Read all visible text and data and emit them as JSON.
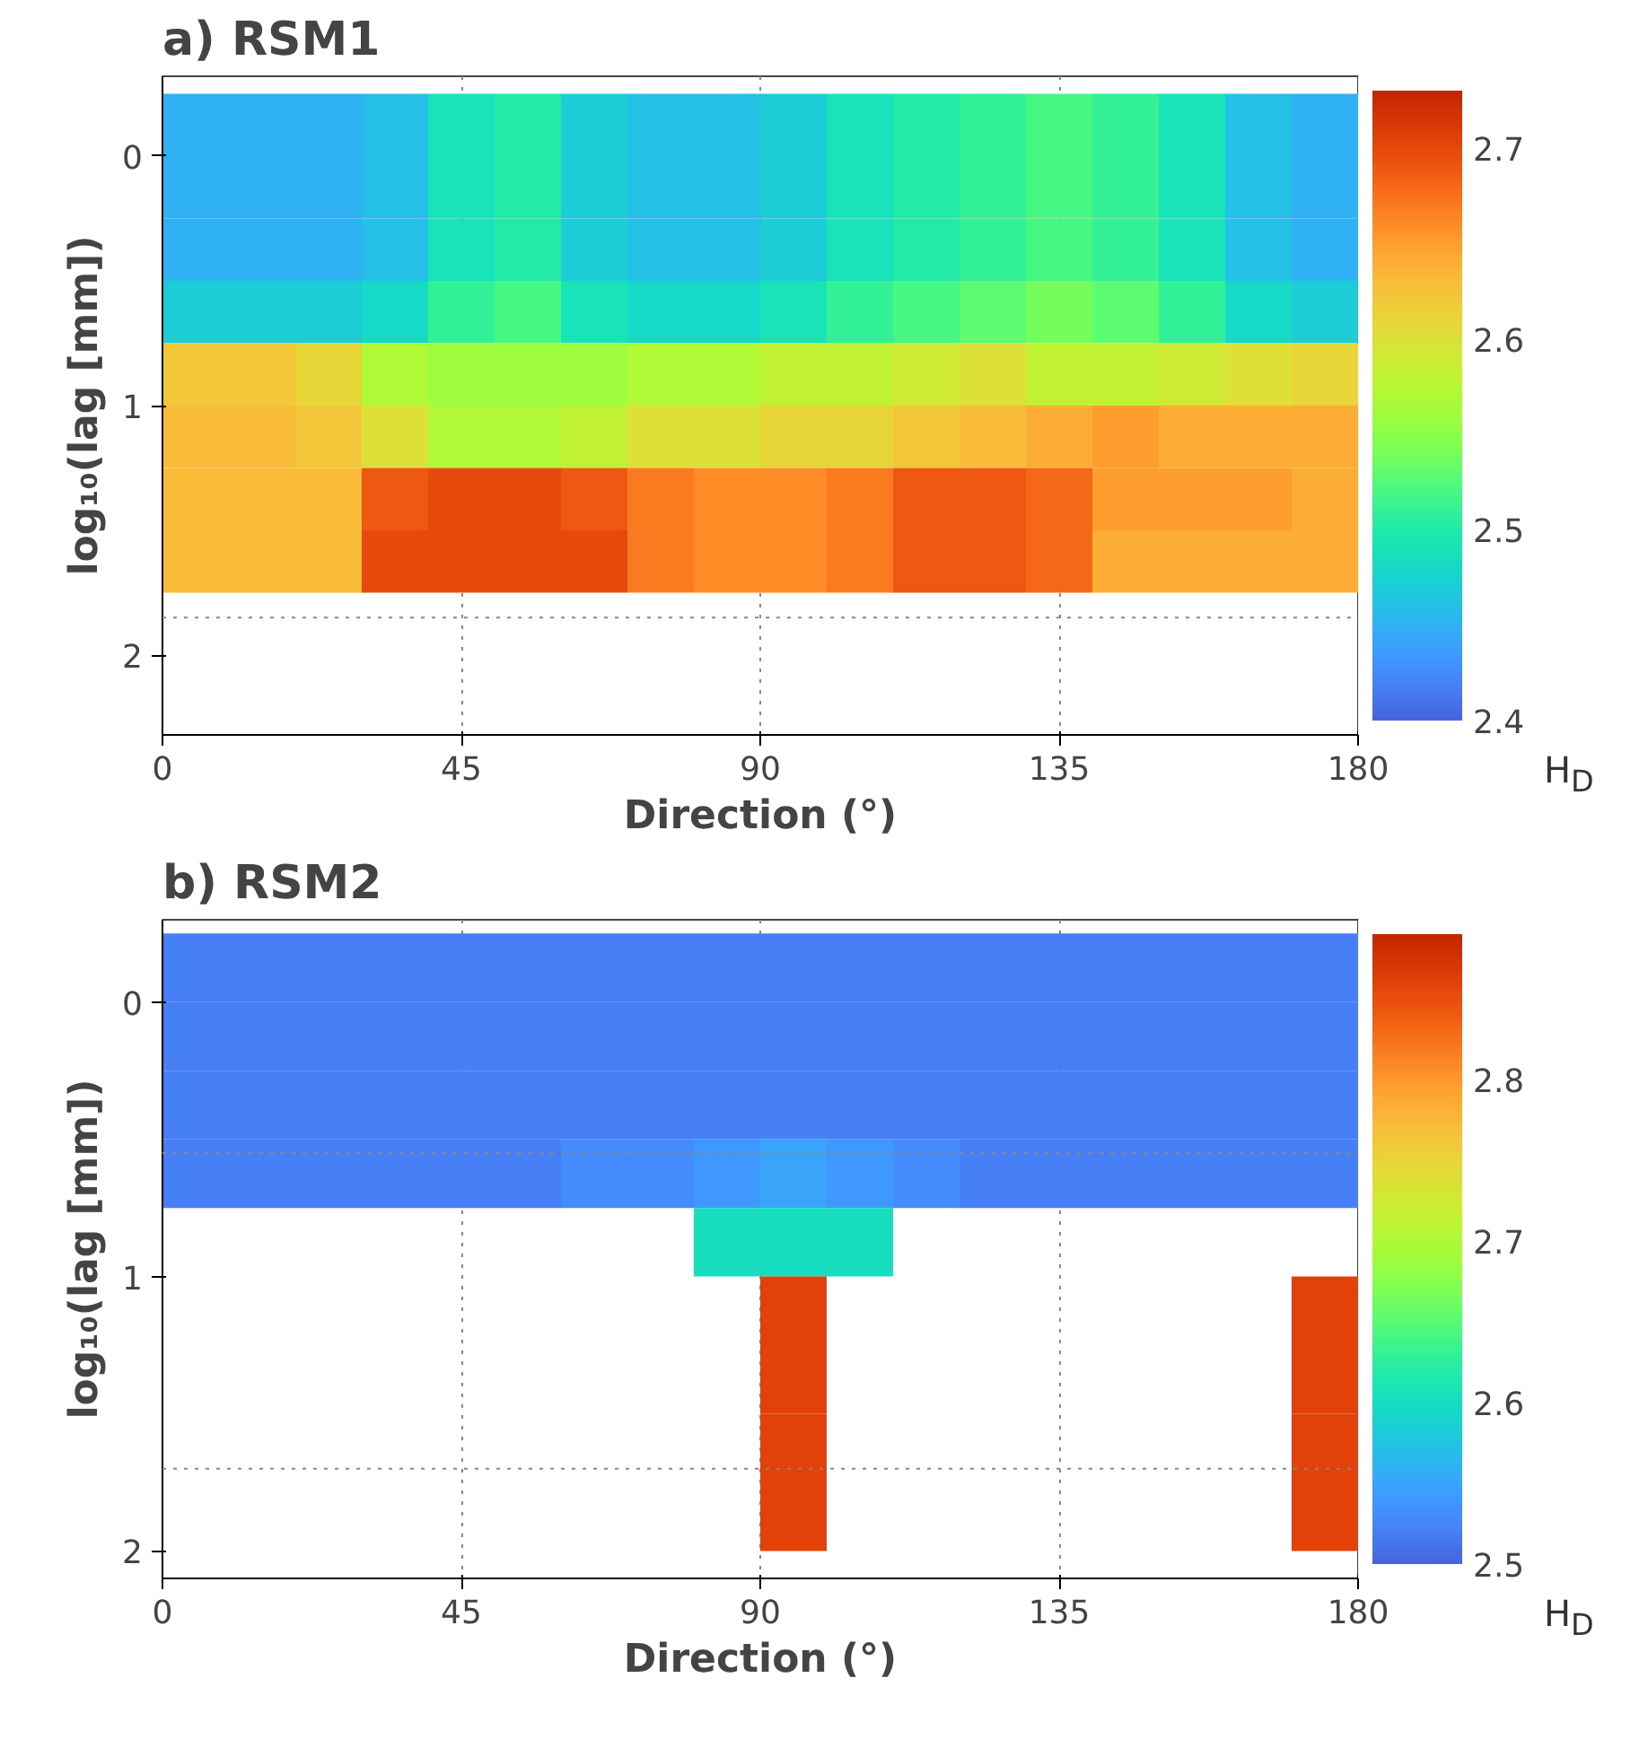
{
  "chart_data": [
    {
      "type": "heatmap",
      "title": "a) RSM1",
      "xlabel": "Direction (°)",
      "ylabel": "log₁₀(lag [mm])",
      "clabel": "H$_{D}$",
      "x": [
        5,
        15,
        25,
        35,
        45,
        55,
        65,
        75,
        85,
        95,
        105,
        115,
        125,
        135,
        145,
        155,
        165,
        175
      ],
      "y": [
        -0.125,
        0.125,
        0.375,
        0.625,
        0.875,
        1.125,
        1.375,
        1.625
      ],
      "cells": [
        [
          2.45,
          2.45,
          2.45,
          2.46,
          2.49,
          2.5,
          2.47,
          2.46,
          2.46,
          2.47,
          2.49,
          2.5,
          2.51,
          2.52,
          2.51,
          2.49,
          2.46,
          2.45
        ],
        [
          2.45,
          2.45,
          2.45,
          2.46,
          2.49,
          2.5,
          2.47,
          2.46,
          2.46,
          2.47,
          2.49,
          2.5,
          2.51,
          2.52,
          2.51,
          2.49,
          2.46,
          2.45
        ],
        [
          2.45,
          2.45,
          2.45,
          2.46,
          2.49,
          2.5,
          2.47,
          2.46,
          2.46,
          2.47,
          2.49,
          2.5,
          2.51,
          2.52,
          2.51,
          2.49,
          2.46,
          2.45
        ],
        [
          2.47,
          2.47,
          2.47,
          2.48,
          2.51,
          2.52,
          2.49,
          2.48,
          2.48,
          2.49,
          2.51,
          2.52,
          2.53,
          2.54,
          2.53,
          2.51,
          2.48,
          2.47
        ],
        [
          2.62,
          2.62,
          2.61,
          2.57,
          2.56,
          2.56,
          2.56,
          2.57,
          2.57,
          2.58,
          2.58,
          2.59,
          2.6,
          2.58,
          2.58,
          2.59,
          2.6,
          2.61
        ],
        [
          2.63,
          2.63,
          2.62,
          2.6,
          2.57,
          2.57,
          2.58,
          2.6,
          2.6,
          2.61,
          2.61,
          2.62,
          2.63,
          2.64,
          2.65,
          2.64,
          2.64,
          2.64
        ],
        [
          2.63,
          2.63,
          2.63,
          2.69,
          2.7,
          2.7,
          2.69,
          2.67,
          2.66,
          2.66,
          2.67,
          2.69,
          2.69,
          2.68,
          2.65,
          2.65,
          2.65,
          2.64
        ],
        [
          2.63,
          2.63,
          2.63,
          2.7,
          2.7,
          2.7,
          2.7,
          2.67,
          2.66,
          2.66,
          2.67,
          2.69,
          2.69,
          2.68,
          2.64,
          2.64,
          2.64,
          2.64
        ]
      ],
      "clim": [
        2.4,
        2.73
      ],
      "cticks": [
        2.4,
        2.5,
        2.6,
        2.7
      ],
      "xlim": [
        0,
        180
      ],
      "xticks": [
        0,
        45,
        90,
        135,
        180
      ],
      "ylim": [
        2.32,
        -0.32
      ],
      "yticks": [
        0,
        1,
        2
      ],
      "grid": "x",
      "ref_lines": [
        {
          "axis": "y",
          "value": 1.85,
          "line_style": "dotted"
        }
      ]
    },
    {
      "type": "heatmap",
      "title": "b) RSM2",
      "xlabel": "Direction (°)",
      "ylabel": "log₁₀(lag [mm])",
      "clabel": "H$_{D}$",
      "x": [
        5,
        15,
        25,
        35,
        45,
        55,
        65,
        75,
        85,
        95,
        105,
        115,
        125,
        135,
        145,
        155,
        165,
        175
      ],
      "y": [
        -0.125,
        0.125,
        0.375,
        0.625,
        0.875,
        1.125,
        1.375,
        1.625,
        1.875
      ],
      "cells": [
        [
          2.52,
          2.52,
          2.52,
          2.52,
          2.52,
          2.52,
          2.52,
          2.52,
          2.52,
          2.52,
          2.52,
          2.52,
          2.52,
          2.52,
          2.52,
          2.52,
          2.52,
          2.52
        ],
        [
          2.52,
          2.52,
          2.52,
          2.52,
          2.52,
          2.52,
          2.52,
          2.52,
          2.52,
          2.52,
          2.52,
          2.52,
          2.52,
          2.52,
          2.52,
          2.52,
          2.52,
          2.52
        ],
        [
          2.52,
          2.52,
          2.52,
          2.52,
          2.52,
          2.52,
          2.52,
          2.52,
          2.52,
          2.52,
          2.52,
          2.52,
          2.52,
          2.52,
          2.52,
          2.52,
          2.52,
          2.52
        ],
        [
          2.52,
          2.52,
          2.52,
          2.52,
          2.52,
          2.52,
          2.53,
          2.53,
          2.54,
          2.55,
          2.54,
          2.53,
          2.52,
          2.52,
          2.52,
          2.52,
          2.52,
          2.52
        ],
        [
          null,
          null,
          null,
          null,
          null,
          null,
          null,
          null,
          2.6,
          2.6,
          2.6,
          null,
          null,
          null,
          null,
          null,
          null,
          null
        ],
        [
          null,
          null,
          null,
          null,
          null,
          null,
          null,
          null,
          null,
          2.86,
          null,
          null,
          null,
          null,
          null,
          null,
          null,
          2.86
        ],
        [
          null,
          null,
          null,
          null,
          null,
          null,
          null,
          null,
          null,
          2.86,
          null,
          null,
          null,
          null,
          null,
          null,
          null,
          2.86
        ],
        [
          null,
          null,
          null,
          null,
          null,
          null,
          null,
          null,
          null,
          2.86,
          null,
          null,
          null,
          null,
          null,
          null,
          null,
          2.86
        ],
        [
          null,
          null,
          null,
          null,
          null,
          null,
          null,
          null,
          null,
          2.86,
          null,
          null,
          null,
          null,
          null,
          null,
          null,
          2.86
        ]
      ],
      "clim": [
        2.5,
        2.89
      ],
      "cticks": [
        2.5,
        2.6,
        2.7,
        2.8
      ],
      "xlim": [
        0,
        180
      ],
      "xticks": [
        0,
        45,
        90,
        135,
        180
      ],
      "ylim": [
        2.1,
        -0.3
      ],
      "yticks": [
        0,
        1,
        2
      ],
      "grid": "x",
      "ref_lines": [
        {
          "axis": "y",
          "value": 0.55,
          "line_style": "dotted"
        },
        {
          "axis": "y",
          "value": 1.7,
          "line_style": "dotted"
        }
      ]
    }
  ]
}
